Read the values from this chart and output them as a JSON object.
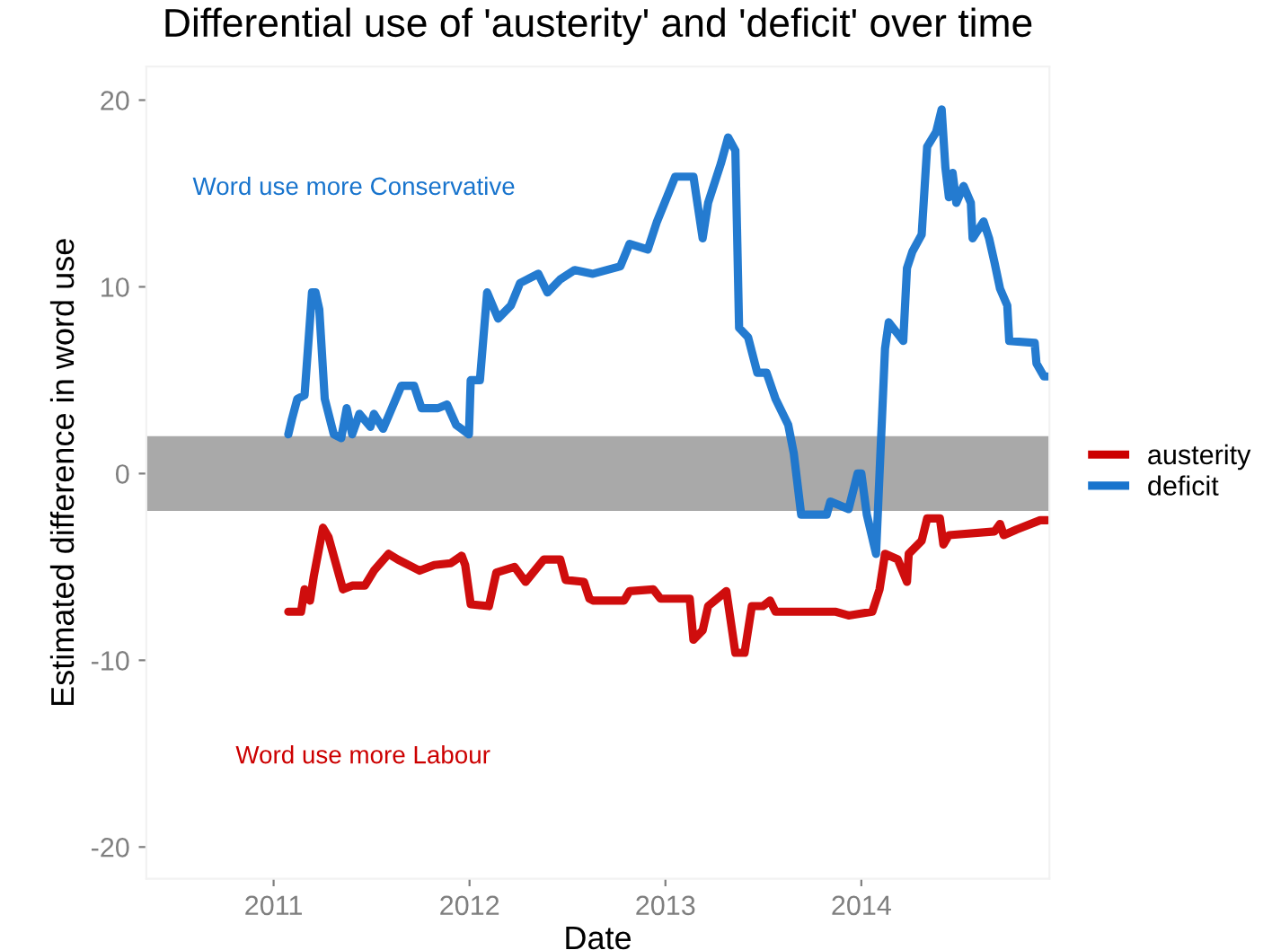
{
  "chart_data": {
    "type": "line",
    "title": "Differential use of 'austerity' and 'deficit' over time",
    "xlabel": "Date",
    "ylabel": "Estimated difference in word use",
    "series": [
      {
        "name": "austerity",
        "color": "#cc0000",
        "x": [
          2011.075,
          2011.14,
          2011.158,
          2011.186,
          2011.205,
          2011.252,
          2011.28,
          2011.354,
          2011.401,
          2011.466,
          2011.512,
          2011.587,
          2011.634,
          2011.745,
          2011.82,
          2011.904,
          2011.96,
          2011.978,
          2012.006,
          2012.099,
          2012.137,
          2012.23,
          2012.286,
          2012.379,
          2012.463,
          2012.491,
          2012.584,
          2012.612,
          2012.63,
          2012.789,
          2012.817,
          2012.938,
          2012.975,
          2013.124,
          2013.143,
          2013.19,
          2013.218,
          2013.311,
          2013.357,
          2013.404,
          2013.441,
          2013.497,
          2013.534,
          2013.562,
          2013.87,
          2013.935,
          2014.056,
          2014.093,
          2014.121,
          2014.186,
          2014.233,
          2014.242,
          2014.308,
          2014.336,
          2014.401,
          2014.419,
          2014.447,
          2014.68,
          2014.708,
          2014.727,
          2014.792,
          2014.913,
          2014.95
        ],
        "values": [
          -7.4,
          -7.4,
          -6.2,
          -6.8,
          -5.5,
          -2.9,
          -3.4,
          -6.2,
          -6.0,
          -6.0,
          -5.2,
          -4.3,
          -4.6,
          -5.2,
          -4.9,
          -4.8,
          -4.4,
          -4.9,
          -7.0,
          -7.1,
          -5.3,
          -5.0,
          -5.8,
          -4.6,
          -4.6,
          -5.7,
          -5.8,
          -6.7,
          -6.8,
          -6.8,
          -6.3,
          -6.2,
          -6.7,
          -6.7,
          -8.9,
          -8.4,
          -7.1,
          -6.3,
          -9.6,
          -9.6,
          -7.1,
          -7.1,
          -6.8,
          -7.4,
          -7.4,
          -7.6,
          -7.4,
          -6.2,
          -4.3,
          -4.6,
          -5.8,
          -4.3,
          -3.6,
          -2.4,
          -2.4,
          -3.8,
          -3.3,
          -3.1,
          -2.7,
          -3.3,
          -3.0,
          -2.5,
          -2.5
        ]
      },
      {
        "name": "deficit",
        "color": "#1874cd",
        "x": [
          2011.075,
          2011.093,
          2011.121,
          2011.158,
          2011.196,
          2011.214,
          2011.233,
          2011.261,
          2011.307,
          2011.345,
          2011.373,
          2011.401,
          2011.438,
          2011.494,
          2011.512,
          2011.559,
          2011.652,
          2011.717,
          2011.755,
          2011.839,
          2011.885,
          2011.932,
          2011.997,
          2012.006,
          2012.053,
          2012.09,
          2012.146,
          2012.211,
          2012.258,
          2012.351,
          2012.398,
          2012.463,
          2012.537,
          2012.63,
          2012.77,
          2012.817,
          2012.91,
          2012.957,
          2013.05,
          2013.143,
          2013.19,
          2013.218,
          2013.283,
          2013.32,
          2013.357,
          2013.376,
          2013.422,
          2013.469,
          2013.516,
          2013.562,
          2013.627,
          2013.655,
          2013.693,
          2013.823,
          2013.842,
          2013.935,
          2013.981,
          2014.0,
          2014.028,
          2014.075,
          2014.121,
          2014.14,
          2014.214,
          2014.233,
          2014.261,
          2014.308,
          2014.336,
          2014.382,
          2014.41,
          2014.429,
          2014.447,
          2014.466,
          2014.485,
          2014.522,
          2014.559,
          2014.568,
          2014.624,
          2014.652,
          2014.68,
          2014.708,
          2014.745,
          2014.755,
          2014.885,
          2014.894,
          2014.932,
          2014.95
        ],
        "values": [
          2.1,
          2.9,
          4.0,
          4.2,
          9.7,
          9.7,
          8.8,
          4.0,
          2.1,
          1.9,
          3.5,
          2.1,
          3.2,
          2.5,
          3.2,
          2.4,
          4.7,
          4.7,
          3.5,
          3.5,
          3.7,
          2.6,
          2.1,
          5.0,
          5.0,
          9.7,
          8.3,
          9.0,
          10.2,
          10.7,
          9.7,
          10.4,
          10.9,
          10.7,
          11.1,
          12.3,
          12.0,
          13.5,
          15.9,
          15.9,
          12.6,
          14.5,
          16.6,
          18.0,
          17.3,
          7.8,
          7.3,
          5.4,
          5.4,
          4.0,
          2.6,
          1.1,
          -2.2,
          -2.2,
          -1.5,
          -1.9,
          0.0,
          0.0,
          -2.2,
          -4.3,
          6.7,
          8.1,
          7.1,
          11.0,
          11.9,
          12.8,
          17.5,
          18.3,
          19.5,
          16.4,
          14.8,
          16.1,
          14.5,
          15.4,
          14.5,
          12.6,
          13.5,
          12.6,
          11.3,
          9.9,
          9.0,
          7.1,
          7.0,
          5.9,
          5.2,
          5.2
        ]
      }
    ],
    "xlim": [
      2010.35,
      2014.96
    ],
    "xticks": [
      2011,
      2012,
      2013,
      2014
    ],
    "ylim": [
      -21.7,
      21.8
    ],
    "yticks": [
      -20,
      -10,
      0,
      10,
      20
    ],
    "bands": [
      {
        "axis": "y",
        "from": -2,
        "to": 2,
        "color": "#a9a9a9"
      }
    ],
    "annotations": [
      "Word use more Conservative",
      "Word use more Labour"
    ],
    "legend": "right",
    "grid": false
  }
}
